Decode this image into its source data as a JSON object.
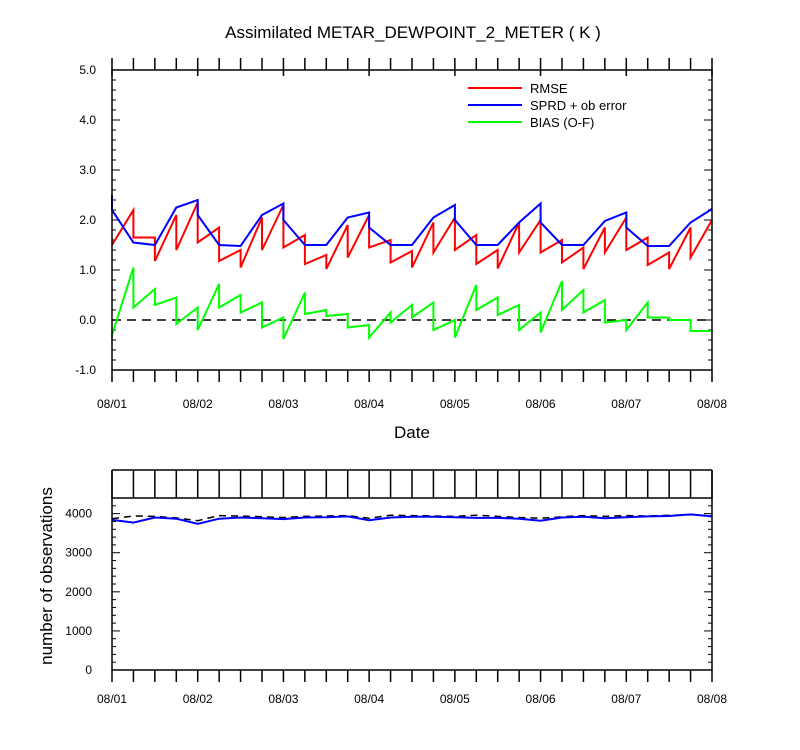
{
  "chart_data": [
    {
      "type": "line",
      "title": "Assimilated METAR_DEWPOINT_2_METER ( K )",
      "xlabel": "Date",
      "ylabel": "",
      "ylim": [
        -1.0,
        5.0
      ],
      "yticks": [
        "-1.0",
        "0.0",
        "1.0",
        "2.0",
        "3.0",
        "4.0",
        "5.0"
      ],
      "xlim": [
        0,
        7
      ],
      "xtick_labels": [
        "08/01",
        "08/02",
        "08/03",
        "08/04",
        "08/05",
        "08/06",
        "08/07",
        "08/08"
      ],
      "legend": "top-right",
      "reference_line": 0,
      "series": [
        {
          "name": "RMSE",
          "color": "#ff0000",
          "x": [
            0,
            0,
            0.25,
            0.25,
            0.5,
            0.5,
            0.75,
            0.75,
            1,
            1,
            1.25,
            1.25,
            1.5,
            1.5,
            1.75,
            1.75,
            2,
            2,
            2.25,
            2.25,
            2.5,
            2.5,
            2.75,
            2.75,
            3,
            3,
            3.25,
            3.25,
            3.5,
            3.5,
            3.75,
            3.75,
            4,
            4,
            4.25,
            4.25,
            4.5,
            4.5,
            4.75,
            4.75,
            5,
            5,
            5.25,
            5.25,
            5.5,
            5.5,
            5.75,
            5.75,
            6,
            6,
            6.25,
            6.25,
            6.5,
            6.5,
            6.75,
            6.75,
            7
          ],
          "y": [
            1.5,
            1.5,
            2.2,
            1.65,
            1.65,
            1.18,
            2.1,
            1.4,
            2.35,
            1.55,
            1.85,
            1.18,
            1.4,
            1.05,
            2.05,
            1.4,
            2.3,
            1.45,
            1.7,
            1.12,
            1.3,
            1.02,
            1.9,
            1.25,
            2.1,
            1.45,
            1.6,
            1.15,
            1.38,
            1.05,
            1.95,
            1.35,
            2.05,
            1.4,
            1.7,
            1.12,
            1.4,
            1.03,
            1.95,
            1.35,
            2.0,
            1.35,
            1.6,
            1.15,
            1.45,
            1.02,
            1.85,
            1.35,
            2.05,
            1.4,
            1.65,
            1.1,
            1.35,
            1.02,
            1.85,
            1.25,
            2.0
          ]
        },
        {
          "name": "SPRD + ob error",
          "color": "#0000ff",
          "x": [
            0,
            0,
            0.25,
            0.25,
            0.5,
            0.5,
            0.75,
            0.75,
            1,
            1,
            1.25,
            1.25,
            1.5,
            1.5,
            1.75,
            1.75,
            2,
            2,
            2.25,
            2.25,
            2.5,
            2.5,
            2.75,
            2.75,
            3,
            3,
            3.25,
            3.25,
            3.5,
            3.5,
            3.75,
            3.75,
            4,
            4,
            4.25,
            4.25,
            4.5,
            4.5,
            4.75,
            4.75,
            5,
            5,
            5.25,
            5.25,
            5.5,
            5.5,
            5.75,
            5.75,
            6,
            6,
            6.25,
            6.25,
            6.5,
            6.5,
            6.75,
            6.75,
            7
          ],
          "y": [
            2.5,
            2.2,
            1.55,
            1.55,
            1.5,
            1.5,
            2.25,
            2.25,
            2.4,
            2.1,
            1.5,
            1.5,
            1.48,
            1.48,
            2.1,
            2.1,
            2.33,
            2.0,
            1.5,
            1.5,
            1.5,
            1.5,
            2.05,
            2.05,
            2.15,
            1.85,
            1.5,
            1.5,
            1.5,
            1.5,
            2.05,
            2.05,
            2.3,
            2.0,
            1.5,
            1.5,
            1.5,
            1.5,
            1.95,
            1.95,
            2.33,
            1.95,
            1.5,
            1.5,
            1.5,
            1.5,
            1.98,
            1.98,
            2.15,
            1.85,
            1.48,
            1.48,
            1.48,
            1.48,
            1.95,
            1.95,
            2.22
          ]
        },
        {
          "name": "BIAS (O-F)",
          "color": "#00ff00",
          "x": [
            0,
            0,
            0.25,
            0.25,
            0.5,
            0.5,
            0.75,
            0.75,
            1,
            1,
            1.25,
            1.25,
            1.5,
            1.5,
            1.75,
            1.75,
            2,
            2,
            2.25,
            2.25,
            2.5,
            2.5,
            2.75,
            2.75,
            3,
            3,
            3.25,
            3.25,
            3.5,
            3.5,
            3.75,
            3.75,
            4,
            4,
            4.25,
            4.25,
            4.5,
            4.5,
            4.75,
            4.75,
            5,
            5,
            5.25,
            5.25,
            5.5,
            5.5,
            5.75,
            5.75,
            6,
            6,
            6.25,
            6.25,
            6.5,
            6.5,
            6.75,
            6.75,
            7
          ],
          "y": [
            -0.35,
            -0.3,
            1.05,
            0.25,
            0.62,
            0.3,
            0.45,
            -0.08,
            0.25,
            -0.2,
            0.72,
            0.25,
            0.5,
            0.15,
            0.35,
            -0.15,
            0.05,
            -0.38,
            0.55,
            0.12,
            0.2,
            0.08,
            0.12,
            -0.15,
            -0.1,
            -0.35,
            0.15,
            -0.05,
            0.3,
            0.05,
            0.35,
            -0.2,
            0.0,
            -0.35,
            0.7,
            0.2,
            0.45,
            0.1,
            0.3,
            -0.2,
            0.15,
            -0.25,
            0.78,
            0.2,
            0.6,
            0.15,
            0.4,
            -0.05,
            0.0,
            -0.2,
            0.35,
            0.05,
            0.05,
            0.0,
            0.0,
            -0.22,
            -0.22
          ]
        }
      ]
    },
    {
      "type": "line",
      "title": "",
      "xlabel": "",
      "ylabel": "number of observations",
      "ylim": [
        0,
        4400
      ],
      "yticks": [
        "0",
        "1000",
        "2000",
        "3000",
        "4000"
      ],
      "xlim": [
        0,
        7
      ],
      "xtick_labels": [
        "08/01",
        "08/02",
        "08/03",
        "08/04",
        "08/05",
        "08/06",
        "08/07",
        "08/08"
      ],
      "series": [
        {
          "color": "#000000",
          "dashed": true,
          "x": [
            0,
            0.25,
            0.5,
            0.75,
            1,
            1.25,
            1.5,
            1.75,
            2,
            2.25,
            2.5,
            2.75,
            3,
            3.25,
            3.5,
            3.75,
            4,
            4.25,
            4.5,
            4.75,
            5,
            5.25,
            5.5,
            5.75,
            6,
            6.25,
            6.5,
            6.75,
            7
          ],
          "y": [
            3870,
            3940,
            3930,
            3890,
            3820,
            3950,
            3940,
            3920,
            3900,
            3930,
            3940,
            3950,
            3880,
            3960,
            3950,
            3940,
            3930,
            3960,
            3930,
            3900,
            3880,
            3920,
            3950,
            3930,
            3950,
            3940,
            3960,
            3970,
            3950
          ]
        },
        {
          "color": "#0000ff",
          "dashed": false,
          "x": [
            0,
            0.25,
            0.5,
            0.75,
            1,
            1.25,
            1.5,
            1.75,
            2,
            2.25,
            2.5,
            2.75,
            3,
            3.25,
            3.5,
            3.75,
            4,
            4.25,
            4.5,
            4.75,
            5,
            5.25,
            5.5,
            5.75,
            6,
            6.25,
            6.5,
            6.75,
            7
          ],
          "y": [
            3840,
            3770,
            3900,
            3870,
            3740,
            3870,
            3900,
            3880,
            3860,
            3900,
            3910,
            3930,
            3830,
            3900,
            3920,
            3920,
            3910,
            3890,
            3890,
            3870,
            3820,
            3900,
            3920,
            3880,
            3910,
            3930,
            3940,
            3980,
            3930
          ]
        }
      ]
    }
  ]
}
